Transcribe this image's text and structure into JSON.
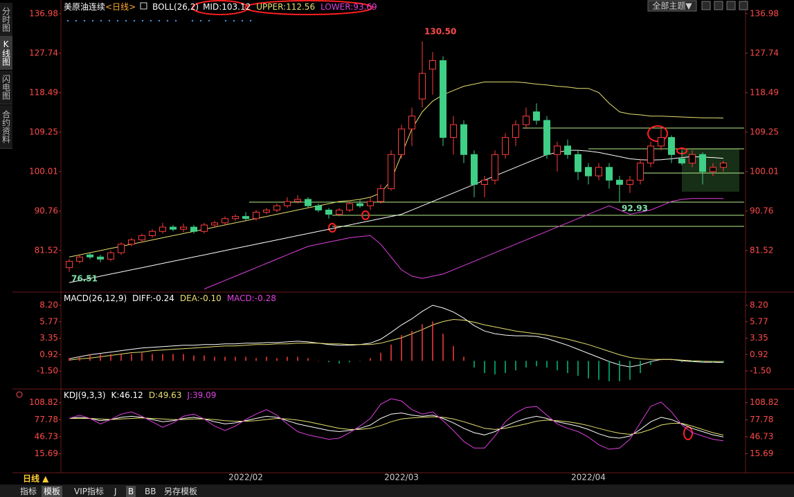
{
  "ui": {
    "side_tabs": [
      "分时图",
      "K线图",
      "闪电图",
      "合约资料"
    ],
    "period_button": "日线 ▲",
    "tabs": [
      "指标",
      "模板",
      "VIP指标",
      "J",
      "B",
      "BB",
      "另存模板"
    ],
    "theme_button": "全部主题▼"
  },
  "chart_data": [
    {
      "type": "candlestick",
      "title": "美原油连续",
      "period": "<日线>",
      "indicator": "BOLL(26,2)",
      "categories": [
        null,
        null,
        null,
        null,
        null,
        null,
        null,
        null,
        null,
        null,
        null,
        null,
        null,
        null,
        null,
        null,
        null,
        "2022/02",
        null,
        null,
        null,
        null,
        null,
        null,
        null,
        null,
        null,
        null,
        null,
        null,
        null,
        null,
        "2022/03",
        null,
        null,
        null,
        null,
        null,
        null,
        null,
        null,
        null,
        null,
        null,
        null,
        null,
        null,
        null,
        null,
        null,
        "2022/04",
        null,
        null,
        null,
        null,
        null,
        null,
        null,
        null,
        null,
        null,
        null,
        null,
        null
      ],
      "ohlc": [
        [
          77.5,
          79.5,
          76.51,
          79
        ],
        [
          79,
          80.5,
          78.5,
          80
        ],
        [
          80.5,
          81,
          79.5,
          80
        ],
        [
          80,
          80.5,
          78.8,
          79.5
        ],
        [
          79.5,
          81.5,
          79,
          81
        ],
        [
          81,
          83.5,
          80.5,
          83
        ],
        [
          83,
          84.5,
          82.5,
          84
        ],
        [
          84,
          85.5,
          83.5,
          85
        ],
        [
          85,
          86.5,
          84.5,
          86
        ],
        [
          86,
          88,
          85.5,
          87
        ],
        [
          87,
          87.5,
          86,
          86.5
        ],
        [
          86.5,
          87.8,
          85.8,
          87
        ],
        [
          87,
          87.5,
          85.5,
          86
        ],
        [
          86,
          88,
          85.5,
          87.5
        ],
        [
          87.5,
          88.5,
          87,
          88
        ],
        [
          88,
          89.5,
          87.5,
          89
        ],
        [
          89,
          90,
          88.5,
          89.5
        ],
        [
          89.5,
          90.5,
          88.5,
          89
        ],
        [
          89,
          91,
          88.5,
          90.5
        ],
        [
          90.5,
          91.5,
          90,
          91
        ],
        [
          91,
          92.5,
          90.5,
          92
        ],
        [
          92,
          94,
          91.5,
          93
        ],
        [
          93,
          94.5,
          92.5,
          93.5
        ],
        [
          93.5,
          94,
          91.5,
          92
        ],
        [
          92,
          92.5,
          90.5,
          91
        ],
        [
          91,
          91.5,
          89,
          90
        ],
        [
          90,
          91.5,
          89.5,
          91
        ],
        [
          91,
          93,
          90.5,
          92.5
        ],
        [
          92.5,
          93.5,
          91.5,
          92
        ],
        [
          92,
          94,
          91,
          93
        ],
        [
          93,
          97,
          92.5,
          96
        ],
        [
          96,
          105,
          95.5,
          104
        ],
        [
          104,
          111,
          103,
          110
        ],
        [
          110,
          115,
          106,
          113
        ],
        [
          117,
          130.5,
          115,
          123
        ],
        [
          124,
          128,
          118,
          126
        ],
        [
          126,
          127,
          106,
          108
        ],
        [
          108,
          113,
          104,
          111
        ],
        [
          111,
          112,
          102,
          104
        ],
        [
          104,
          105,
          94,
          97
        ],
        [
          97,
          99,
          94,
          98
        ],
        [
          98,
          105,
          97,
          104
        ],
        [
          104,
          109,
          103,
          108
        ],
        [
          108,
          112,
          106,
          111
        ],
        [
          111,
          115,
          110,
          113
        ],
        [
          114,
          116,
          111,
          112
        ],
        [
          112,
          113,
          103,
          104
        ],
        [
          104,
          107,
          100,
          106
        ],
        [
          106,
          107.5,
          103,
          104
        ],
        [
          104,
          105,
          98,
          100
        ],
        [
          101,
          102,
          97,
          99
        ],
        [
          99,
          102,
          98,
          101
        ],
        [
          101,
          102,
          96,
          98
        ],
        [
          98,
          99,
          92.93,
          97
        ],
        [
          97,
          99,
          95,
          98
        ],
        [
          98,
          103,
          97,
          102
        ],
        [
          102,
          107,
          101,
          106
        ],
        [
          106,
          110,
          105,
          108
        ],
        [
          108,
          108.5,
          102,
          104
        ],
        [
          103,
          105,
          101.5,
          102
        ],
        [
          102,
          105,
          101,
          104
        ],
        [
          104,
          104.5,
          97,
          100
        ],
        [
          100,
          102,
          99,
          101
        ],
        [
          101,
          102.5,
          100,
          102
        ]
      ],
      "up_color": "#ff3c3c",
      "down_color": "#3fcf86",
      "series": [
        {
          "name": "MID:103.12",
          "color": "#ffffff",
          "values": [
            74,
            74.5,
            75,
            75.5,
            76,
            76.5,
            77,
            77.5,
            78,
            78.5,
            79,
            79.5,
            80,
            80.5,
            81,
            81.5,
            82,
            82.5,
            83,
            83.5,
            84,
            84.5,
            85,
            85.5,
            86,
            86.5,
            87,
            87.5,
            88,
            88.5,
            89,
            89.5,
            90,
            91,
            92,
            93,
            94,
            95,
            96,
            97,
            98,
            99,
            100,
            101,
            102,
            103,
            104,
            104.5,
            105,
            105,
            104.8,
            104.5,
            104,
            103.5,
            103,
            102.8,
            102.7,
            102.8,
            103,
            103.3,
            103.5,
            103.4,
            103.3,
            103.12
          ]
        },
        {
          "name": "UPPER:112.56",
          "color": "#e8e070",
          "values": [
            80,
            80.5,
            81,
            81.5,
            82,
            82.5,
            83,
            83.5,
            84,
            84.5,
            85,
            85.5,
            86,
            86.5,
            87,
            87.5,
            88,
            88.5,
            89,
            89.5,
            90,
            90.5,
            91,
            91.5,
            92,
            92.5,
            93,
            93.2,
            93.5,
            94,
            95,
            98,
            104,
            110,
            114,
            116.5,
            118,
            119,
            120,
            120.5,
            121,
            121,
            121,
            121,
            120.8,
            120.5,
            120.3,
            120,
            119.8,
            119.5,
            119.5,
            118.5,
            116,
            114,
            113.5,
            113.3,
            113,
            113,
            112.9,
            112.8,
            112.7,
            112.6,
            112.6,
            112.56
          ]
        },
        {
          "name": "LOWER:93.69",
          "color": "#e040e0",
          "values": [
            null,
            null,
            null,
            null,
            null,
            null,
            null,
            null,
            null,
            null,
            null,
            null,
            null,
            72.5,
            73.5,
            74.5,
            75.5,
            76.5,
            77.5,
            78.5,
            79.5,
            80.5,
            81.5,
            82.5,
            83,
            83.5,
            84,
            84.5,
            84.8,
            85,
            83,
            80,
            77,
            75.5,
            75,
            75.5,
            76,
            77,
            78,
            79,
            80,
            81,
            82,
            83,
            84,
            85,
            86,
            87,
            88,
            89,
            90,
            91,
            92,
            91,
            90,
            90.5,
            91,
            92,
            93,
            93.5,
            93.7,
            93.7,
            93.7,
            93.69
          ]
        }
      ],
      "annotations": [
        {
          "value": 130.5,
          "label": "130.50"
        },
        {
          "value": 76.51,
          "label": "76.51"
        },
        {
          "value": 92.93,
          "label": "92.93"
        }
      ],
      "ylim": [
        72.1,
        138.9
      ],
      "yticks": [
        81.52,
        90.76,
        100.01,
        109.25,
        118.49,
        127.74,
        136.98
      ]
    },
    {
      "type": "macd",
      "indicator": "MACD(26,12,9)",
      "up_color": "#ff3c3c",
      "down_color": "#00c080",
      "series": [
        {
          "name": "DIFF:-0.24",
          "color": "#ffffff",
          "values": [
            0.3,
            0.6,
            0.9,
            1.1,
            1.3,
            1.5,
            1.7,
            1.9,
            2.0,
            2.1,
            2.2,
            2.3,
            2.3,
            2.4,
            2.4,
            2.5,
            2.5,
            2.6,
            2.6,
            2.7,
            2.7,
            2.8,
            2.9,
            2.8,
            2.6,
            2.4,
            2.3,
            2.3,
            2.4,
            2.6,
            3.2,
            4.2,
            5.3,
            6.2,
            7.3,
            8.2,
            7.8,
            7.2,
            6.3,
            5.2,
            4.4,
            4.0,
            3.8,
            3.7,
            3.7,
            3.6,
            3.3,
            2.8,
            2.3,
            1.7,
            1.1,
            0.5,
            -0.1,
            -0.6,
            -0.9,
            -0.6,
            -0.1,
            0.2,
            0.2,
            0.0,
            -0.1,
            -0.2,
            -0.2,
            -0.24
          ]
        },
        {
          "name": "DEA:-0.10",
          "color": "#e8e070",
          "values": [
            0.1,
            0.3,
            0.4,
            0.6,
            0.8,
            1.0,
            1.2,
            1.3,
            1.5,
            1.6,
            1.7,
            1.8,
            1.9,
            2.0,
            2.1,
            2.2,
            2.2,
            2.3,
            2.4,
            2.4,
            2.5,
            2.5,
            2.6,
            2.6,
            2.6,
            2.5,
            2.5,
            2.4,
            2.4,
            2.4,
            2.6,
            3.0,
            3.4,
            4.0,
            4.6,
            5.3,
            5.8,
            6.1,
            6.0,
            5.7,
            5.3,
            5.0,
            4.7,
            4.4,
            4.2,
            4.0,
            3.8,
            3.5,
            3.2,
            2.8,
            2.4,
            1.9,
            1.4,
            0.9,
            0.5,
            0.3,
            0.2,
            0.2,
            0.2,
            0.1,
            0.0,
            -0.05,
            -0.08,
            -0.1
          ]
        },
        {
          "name": "MACD:-0.28",
          "color": "#e040e0",
          "kind": "bar",
          "values": [
            0.4,
            0.6,
            1.0,
            1.0,
            1.0,
            1.0,
            1.0,
            1.2,
            1.0,
            1.0,
            1.0,
            1.0,
            0.8,
            0.8,
            0.6,
            0.6,
            0.6,
            0.6,
            0.4,
            0.6,
            0.4,
            0.6,
            0.6,
            0.4,
            0,
            -0.2,
            -0.4,
            -0.2,
            0,
            0.4,
            1.2,
            2.4,
            3.8,
            4.4,
            5.4,
            5.8,
            4.0,
            2.2,
            0.6,
            -1.0,
            -1.8,
            -2.0,
            -1.8,
            -1.4,
            -1.0,
            -0.8,
            -1.0,
            -1.4,
            -1.8,
            -2.2,
            -2.6,
            -2.8,
            -3.0,
            -3.0,
            -2.8,
            -1.8,
            -0.6,
            0,
            0,
            -0.2,
            -0.2,
            -0.3,
            -0.24,
            -0.28
          ]
        }
      ],
      "ylim": [
        -3.95,
        9.83
      ],
      "yticks": [
        {
          "value": 8.2,
          "label": "8.20"
        },
        5.77,
        3.35,
        0.92,
        {
          "value": -1.5,
          "label": "-1.50"
        }
      ]
    },
    {
      "type": "line",
      "indicator": "KDJ(9,3,3)",
      "series": [
        {
          "name": "K:46.12",
          "color": "#ffffff",
          "values": [
            80,
            82,
            80,
            76,
            78,
            82,
            84,
            82,
            78,
            74,
            76,
            80,
            82,
            79,
            74,
            70,
            72,
            76,
            80,
            84,
            82,
            76,
            70,
            66,
            62,
            58,
            56,
            58,
            62,
            68,
            80,
            88,
            90,
            86,
            84,
            86,
            80,
            72,
            62,
            54,
            50,
            56,
            66,
            74,
            80,
            84,
            80,
            74,
            70,
            66,
            60,
            52,
            46,
            44,
            48,
            60,
            74,
            82,
            78,
            70,
            62,
            56,
            50,
            46.12
          ]
        },
        {
          "name": "D:49.63",
          "color": "#e8e070",
          "values": [
            80,
            80,
            80,
            79,
            78,
            79,
            80,
            81,
            80,
            79,
            78,
            78,
            79,
            79,
            78,
            76,
            75,
            75,
            76,
            78,
            80,
            79,
            77,
            74,
            70,
            66,
            62,
            60,
            60,
            62,
            67,
            74,
            79,
            81,
            82,
            83,
            82,
            79,
            74,
            68,
            62,
            60,
            62,
            66,
            70,
            75,
            77,
            76,
            74,
            71,
            67,
            62,
            57,
            53,
            51,
            54,
            60,
            68,
            71,
            71,
            66,
            60,
            54,
            49.63
          ]
        },
        {
          "name": "J:39.09",
          "color": "#e040e0",
          "values": [
            80,
            86,
            80,
            70,
            78,
            88,
            92,
            84,
            74,
            64,
            72,
            84,
            88,
            79,
            66,
            58,
            66,
            78,
            88,
            96,
            86,
            70,
            56,
            50,
            46,
            42,
            44,
            54,
            66,
            80,
            106,
            116,
            112,
            96,
            88,
            92,
            76,
            58,
            38,
            26,
            26,
            48,
            74,
            90,
            100,
            102,
            86,
            70,
            62,
            56,
            46,
            32,
            24,
            26,
            42,
            72,
            102,
            110,
            92,
            68,
            54,
            48,
            42,
            39.09
          ]
        }
      ],
      "ylim": [
        -19.1,
        129.9
      ],
      "yticks": [
        108.82,
        77.78,
        46.73,
        15.69
      ]
    }
  ]
}
